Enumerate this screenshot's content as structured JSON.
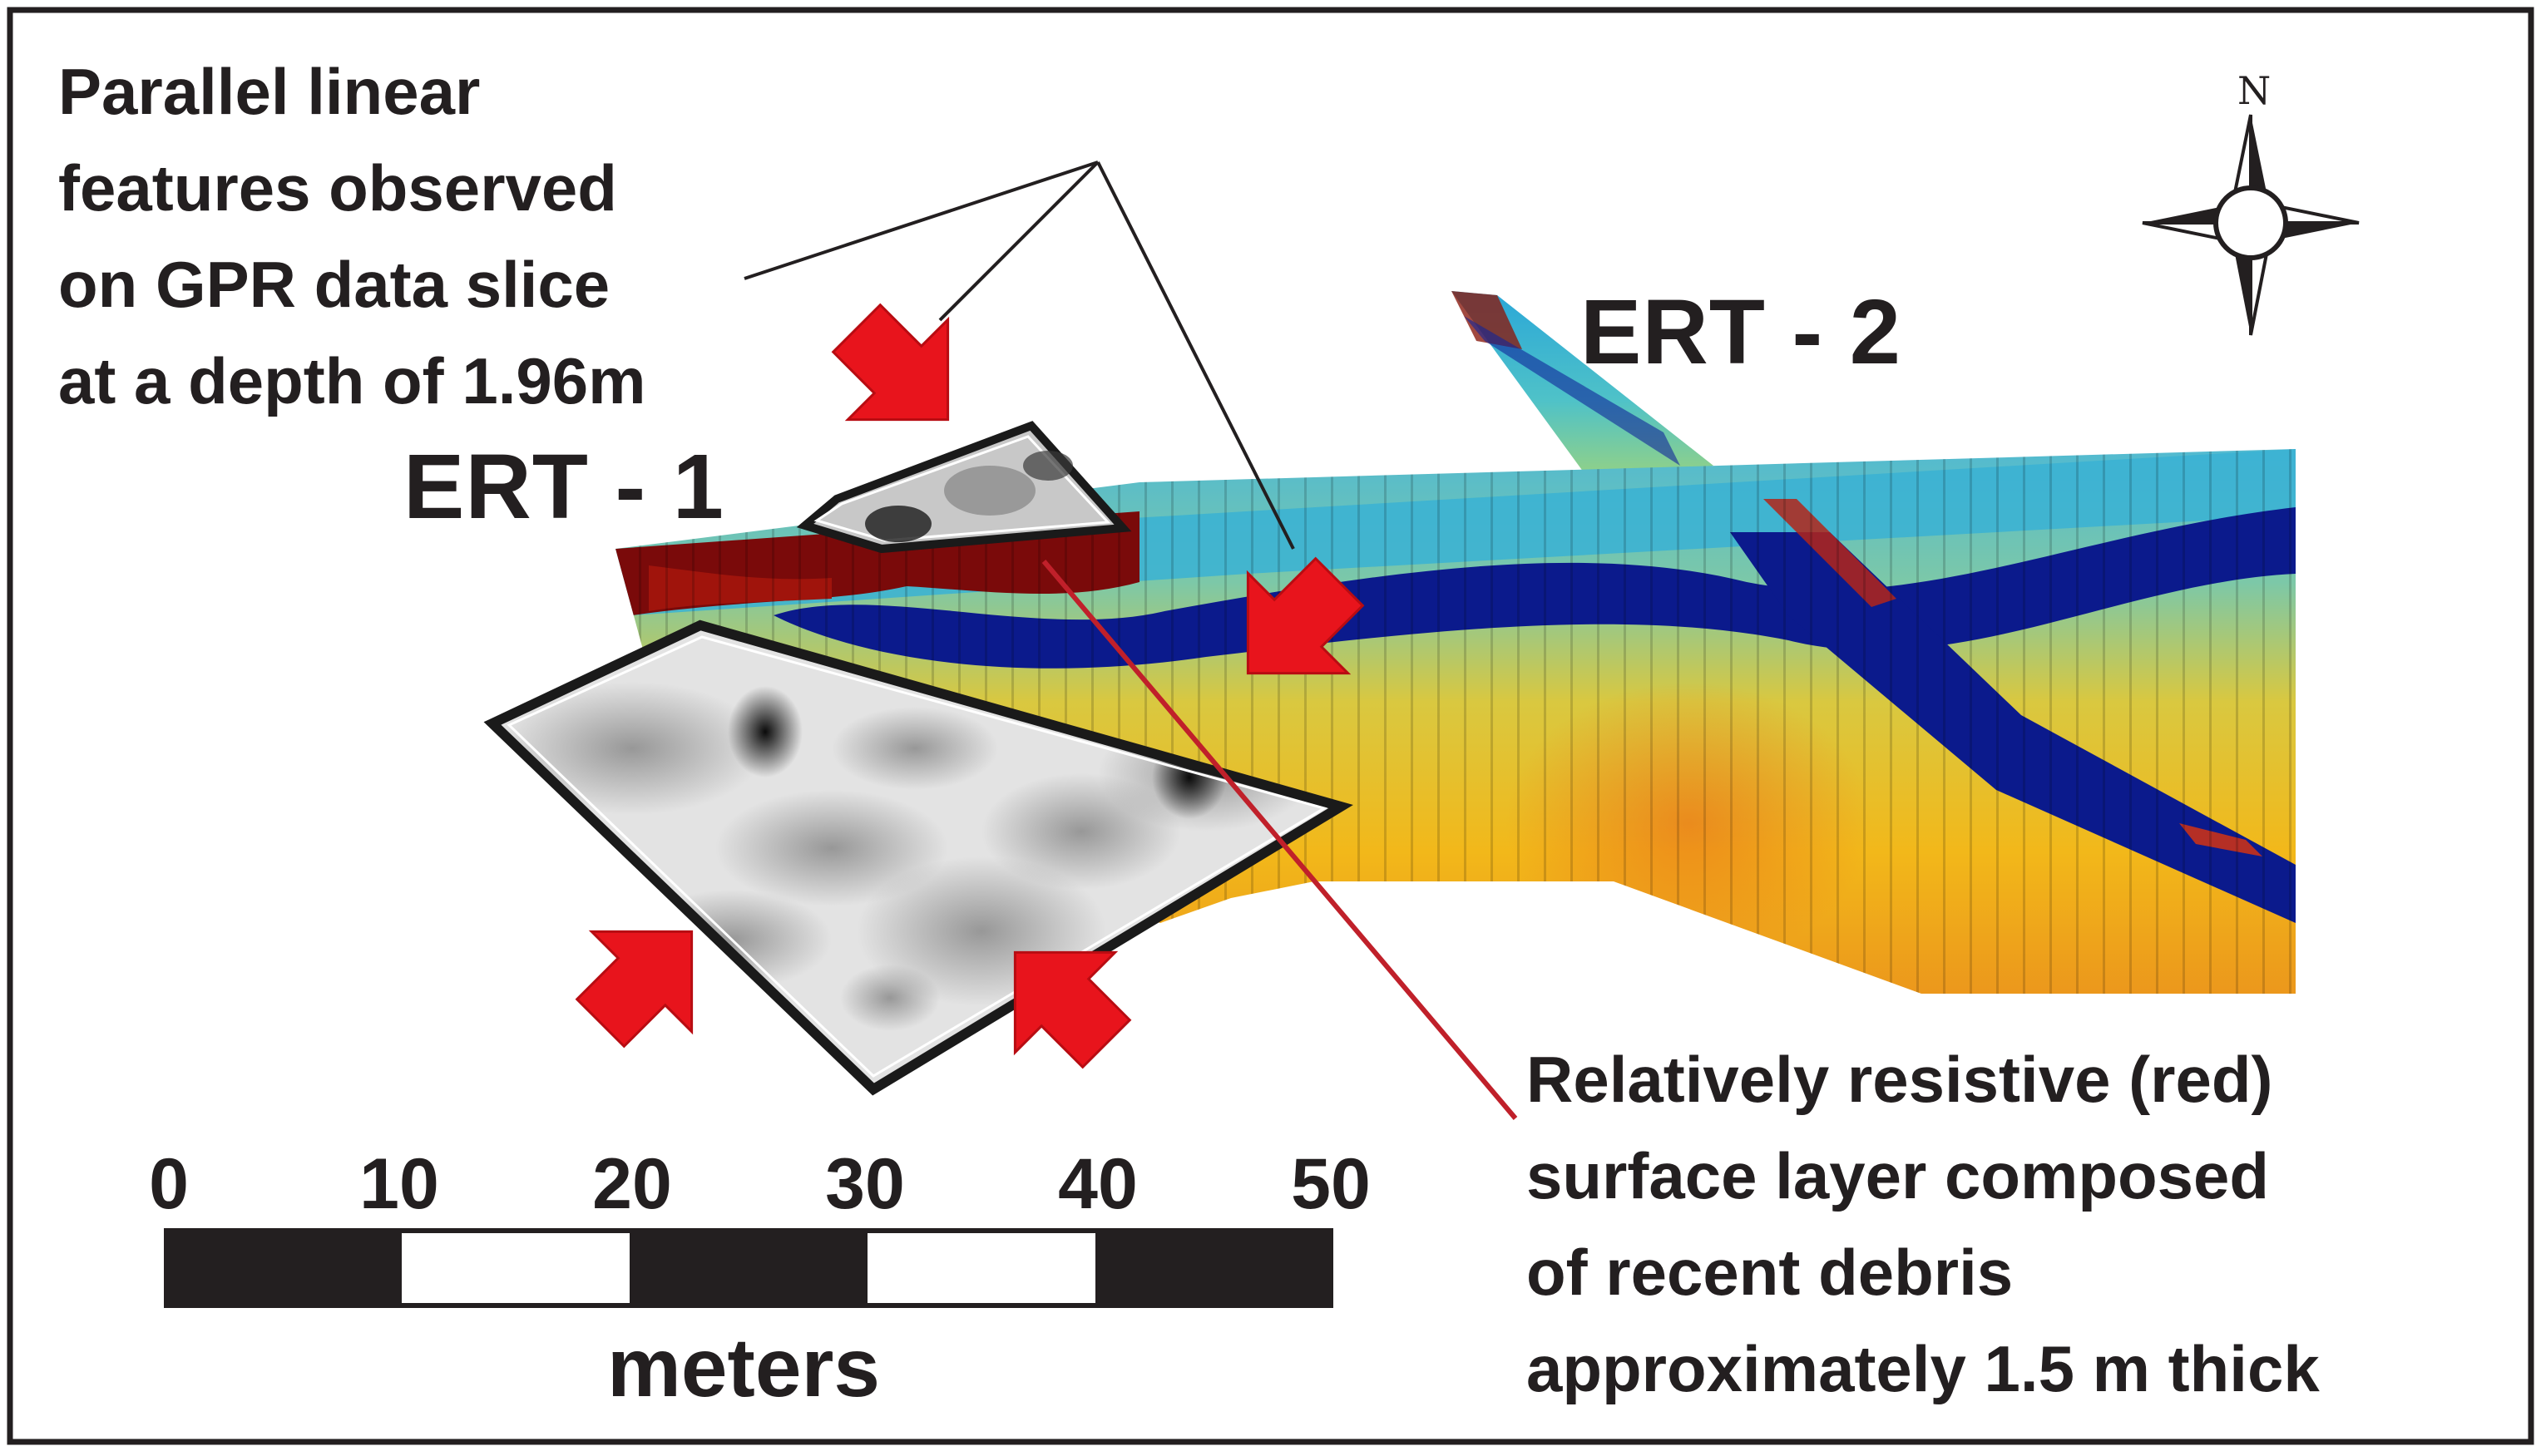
{
  "annotations": {
    "gpr_callout": [
      "Parallel linear",
      "features observed",
      "on GPR data slice",
      "at a depth of 1.96m"
    ],
    "surface_callout": [
      "Relatively resistive (red)",
      "surface layer composed",
      "of recent debris",
      "approximately 1.5 m thick"
    ]
  },
  "profiles": {
    "ert1": "ERT - 1",
    "ert2": "ERT - 2"
  },
  "scale_bar": {
    "ticks": [
      "0",
      "10",
      "20",
      "30",
      "40",
      "50"
    ],
    "units": "meters"
  },
  "compass": {
    "north": "N"
  },
  "colors": {
    "resistive_red": "#7a0a0a",
    "conductive_blue": "#0a1a8c",
    "mid_cyan": "#2aa7d8",
    "yellow": "#f2c21a",
    "arrow_red": "#e8141c",
    "leader_red": "#c0202a",
    "ink": "#231f20"
  },
  "icons": {
    "arrow": "red-arrow-icon",
    "compass": "compass-rose-icon"
  }
}
